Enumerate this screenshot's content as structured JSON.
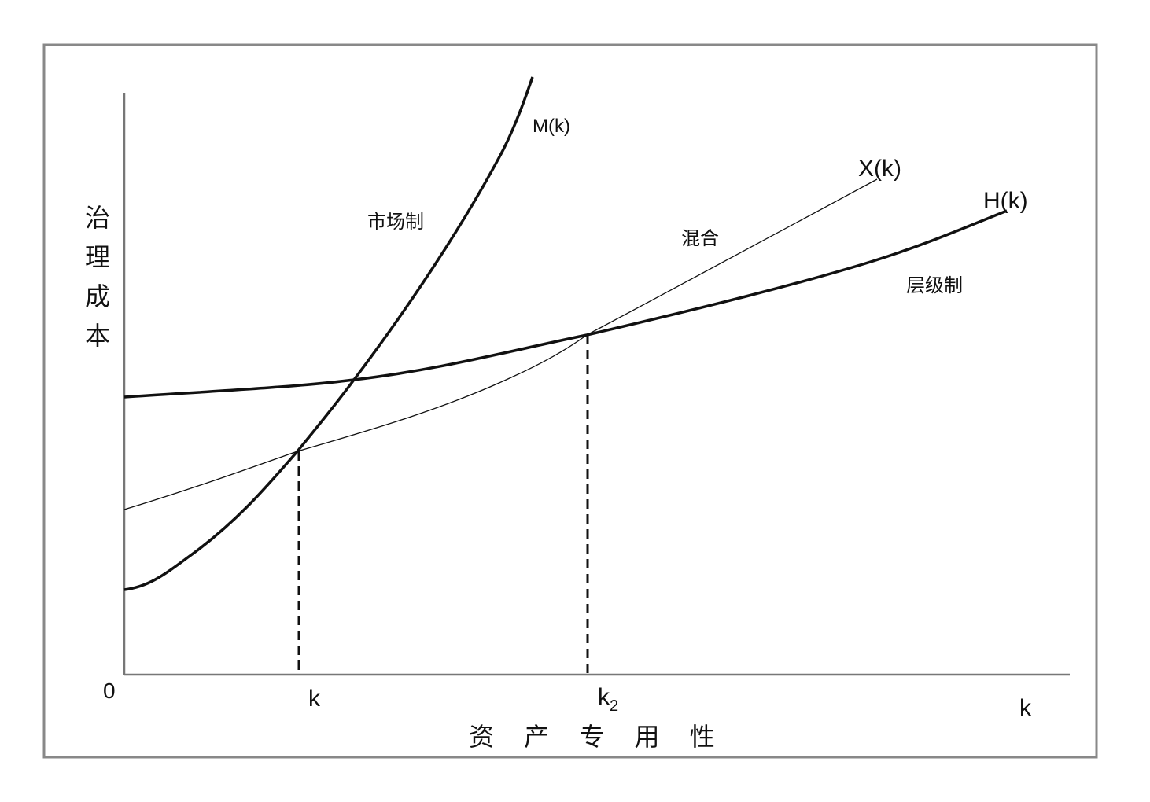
{
  "figure": {
    "y_axis_label": [
      "治",
      "理",
      "成",
      "本"
    ],
    "x_axis_label": "资 产 专 用 性",
    "origin_label": "0",
    "x_axis_end_label": "k",
    "k1_label": "k",
    "k2_label": "k",
    "k2_subscript": "2",
    "curves": {
      "market": {
        "label": "M(k)",
        "region_label": "市场制"
      },
      "hybrid": {
        "label": "X(k)",
        "region_label": "混合"
      },
      "hierarchy": {
        "label": "H(k)",
        "region_label": "层级制"
      }
    }
  },
  "colors": {
    "line": "#111111",
    "frame": "#888888",
    "background": "#ffffff"
  }
}
